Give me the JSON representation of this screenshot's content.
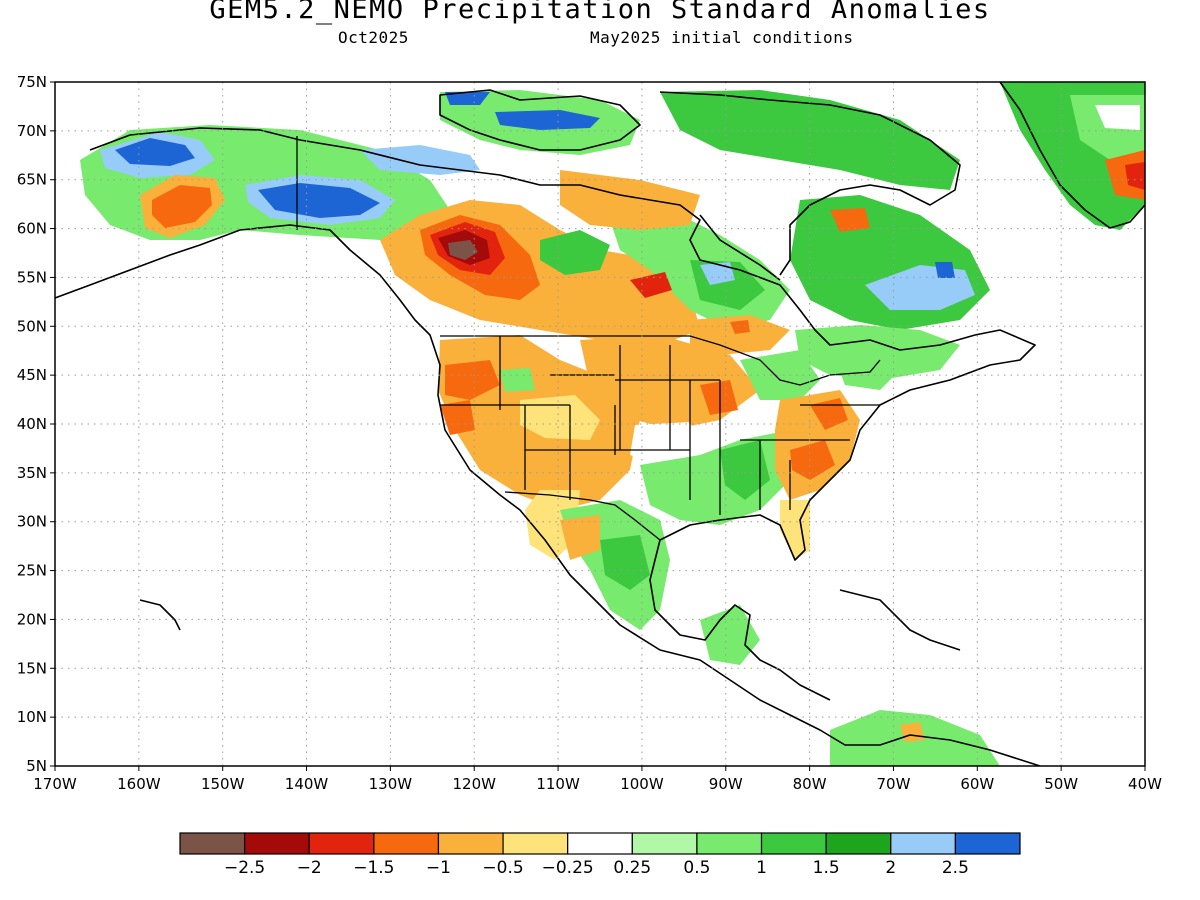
{
  "title": "GEM5.2_NEMO Precipitation Standard Anomalies",
  "subtitle_left": "Oct2025",
  "subtitle_right": "May2025 initial conditions",
  "lat_labels": [
    "75N",
    "70N",
    "65N",
    "60N",
    "55N",
    "50N",
    "45N",
    "40N",
    "35N",
    "30N",
    "25N",
    "20N",
    "15N",
    "10N",
    "5N"
  ],
  "lon_labels": [
    "170W",
    "160W",
    "150W",
    "140W",
    "130W",
    "120W",
    "110W",
    "100W",
    "90W",
    "80W",
    "70W",
    "60W",
    "50W",
    "40W"
  ],
  "colorbar": {
    "colors": [
      "#7b5347",
      "#a50a0a",
      "#e2240f",
      "#f7690f",
      "#f9b13c",
      "#fde37a",
      "#ffffff",
      "#b2f7a8",
      "#78ea6e",
      "#3cc93f",
      "#1ea51e",
      "#96ccf7",
      "#1d64d4"
    ],
    "labels": [
      "−2.5",
      "−2",
      "−1.5",
      "−1",
      "−0.5",
      "−0.25",
      "0.25",
      "0.5",
      "1",
      "1.5",
      "2",
      "2.5"
    ]
  }
}
